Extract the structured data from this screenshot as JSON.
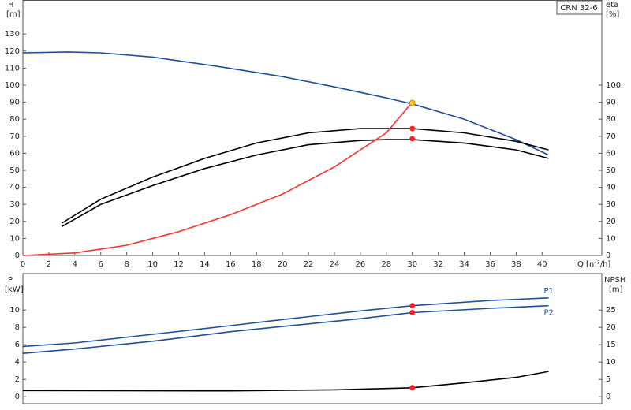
{
  "chart_data": [
    {
      "type": "line",
      "annotation": "CRN 32-6",
      "y_label": "H",
      "y_unit": "[m]",
      "y2_label": "eta",
      "y2_unit": "[%]",
      "x_label": "Q [m³/h]",
      "xlim": [
        0,
        44.6
      ],
      "xticks": [
        0,
        2,
        4,
        6,
        8,
        10,
        12,
        14,
        16,
        18,
        20,
        22,
        24,
        26,
        28,
        30,
        32,
        34,
        36,
        38,
        40
      ],
      "ylim": [
        0,
        150
      ],
      "yticks": [
        0,
        10,
        20,
        30,
        40,
        50,
        60,
        70,
        80,
        90,
        100,
        110,
        120,
        130
      ],
      "y2lim": [
        0,
        150
      ],
      "y2ticks": [
        0,
        10,
        20,
        30,
        40,
        50,
        60,
        70,
        80,
        90,
        100
      ],
      "series": [
        {
          "color": "#1f4f96",
          "x": [
            0,
            3.5,
            6,
            10,
            15,
            20,
            24,
            28,
            30,
            34,
            38,
            40.5
          ],
          "values": [
            119,
            119.5,
            119,
            116.5,
            111,
            105,
            99,
            92.5,
            89,
            80,
            68,
            59
          ]
        },
        {
          "color": "#000000",
          "axis": "y2",
          "x": [
            3,
            6,
            10,
            14,
            18,
            22,
            26,
            30,
            34,
            38,
            40.5
          ],
          "values": [
            19,
            33,
            46,
            57,
            66,
            72,
            74.5,
            74.5,
            72,
            67,
            62
          ]
        },
        {
          "color": "#000000",
          "axis": "y2",
          "x": [
            3,
            6,
            10,
            14,
            18,
            22,
            26,
            28,
            30,
            34,
            38,
            40.5
          ],
          "values": [
            17,
            30,
            41,
            51,
            59,
            65,
            67.5,
            68,
            68,
            66,
            62,
            57
          ]
        },
        {
          "color": "#ff3030",
          "x": [
            0,
            4,
            8,
            12,
            16,
            20,
            24,
            28,
            30
          ],
          "values": [
            0,
            1.5,
            6,
            14,
            24,
            36,
            52,
            72,
            90
          ]
        }
      ],
      "points": [
        {
          "x": 30,
          "y": 74.5,
          "color": "#ff2020"
        },
        {
          "x": 30,
          "y": 68.5,
          "color": "#ff2020"
        },
        {
          "x": 30,
          "y": 89.5,
          "color": "#ffcc00"
        }
      ]
    },
    {
      "type": "line",
      "y_label": "P",
      "y_unit": "[kW]",
      "y2_label": "NPSH",
      "y2_unit": "[m]",
      "xlim": [
        0,
        44.6
      ],
      "ylim": [
        -0.8,
        14.2
      ],
      "yticks": [
        0,
        2,
        4,
        6,
        8,
        10
      ],
      "y2lim": [
        -2,
        35.5
      ],
      "y2ticks": [
        0,
        5,
        10,
        15,
        20,
        25
      ],
      "series": [
        {
          "name": "P1",
          "color": "#1f4f96",
          "x": [
            0,
            4,
            10,
            16,
            20,
            26,
            30,
            36,
            40.5
          ],
          "values": [
            5.8,
            6.2,
            7.2,
            8.2,
            8.9,
            9.9,
            10.5,
            11.1,
            11.4
          ]
        },
        {
          "name": "P2",
          "color": "#1f4f96",
          "x": [
            0,
            4,
            10,
            16,
            20,
            26,
            30,
            36,
            40.5
          ],
          "values": [
            5.0,
            5.5,
            6.4,
            7.5,
            8.1,
            9.0,
            9.7,
            10.2,
            10.5
          ]
        },
        {
          "color": "#000000",
          "axis": "y2",
          "x": [
            0,
            16,
            24,
            30,
            34,
            38,
            40.5
          ],
          "values": [
            1.8,
            1.7,
            2,
            2.6,
            4,
            5.6,
            7.3
          ]
        }
      ],
      "points": [
        {
          "x": 30,
          "y": 10.5,
          "color": "#ff2020"
        },
        {
          "x": 30,
          "y": 9.7,
          "color": "#ff2020"
        },
        {
          "x": 30,
          "y": 2.6,
          "axis": "y2",
          "color": "#ff2020"
        }
      ]
    }
  ]
}
